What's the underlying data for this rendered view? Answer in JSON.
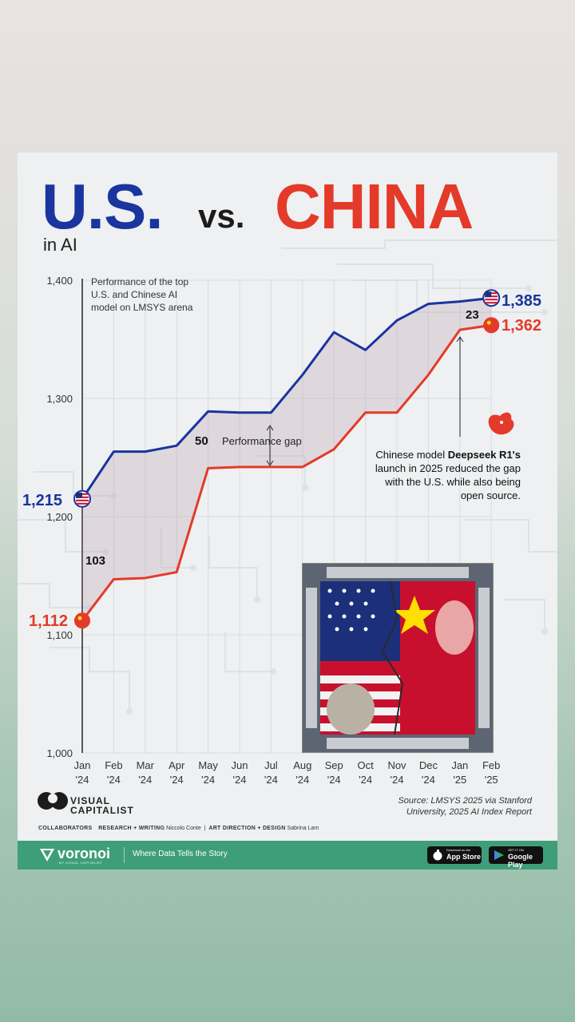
{
  "title": {
    "us": "U.S.",
    "vs": "vs.",
    "china": "CHINA",
    "subtitle": "in AI"
  },
  "chart_data": {
    "type": "line",
    "categories": [
      [
        "Jan",
        "'24"
      ],
      [
        "Feb",
        "'24"
      ],
      [
        "Mar",
        "'24"
      ],
      [
        "Apr",
        "'24"
      ],
      [
        "May",
        "'24"
      ],
      [
        "Jun",
        "'24"
      ],
      [
        "Jul",
        "'24"
      ],
      [
        "Aug",
        "'24"
      ],
      [
        "Sep",
        "'24"
      ],
      [
        "Oct",
        "'24"
      ],
      [
        "Nov",
        "'24"
      ],
      [
        "Dec",
        "'24"
      ],
      [
        "Jan",
        "'25"
      ],
      [
        "Feb",
        "'25"
      ]
    ],
    "series": [
      {
        "country": "us",
        "color": "#1a34a0",
        "values": [
          1215,
          1255,
          1255,
          1260,
          1289,
          1288,
          1288,
          1320,
          1356,
          1341,
          1366,
          1380,
          1382,
          1385
        ]
      },
      {
        "country": "china",
        "color": "#e43a2a",
        "values": [
          1112,
          1147,
          1148,
          1153,
          1241,
          1242,
          1242,
          1242,
          1257,
          1288,
          1288,
          1320,
          1358,
          1362
        ]
      }
    ],
    "yticks": [
      "1,000",
      "1,100",
      "1,200",
      "1,300",
      "1,400"
    ],
    "ytick_values": [
      1000,
      1100,
      1200,
      1300,
      1400
    ],
    "ylim": [
      1000,
      1400
    ],
    "grid": true,
    "start_labels": {
      "us": "1,215",
      "china": "1,112"
    },
    "end_labels": {
      "us": "1,385",
      "china": "1,362"
    },
    "chart_note": [
      "Performance of the top",
      "U.S. and Chinese AI",
      "model on LMSYS arena"
    ],
    "gap_labels": {
      "start": "103",
      "mid_value": "50",
      "mid_text": "Performance gap",
      "end": "23"
    },
    "deepseek_note": {
      "line1_a": "Chinese model ",
      "line1_b": "Deepseek R1's",
      "line2": "launch in 2025 reduced the gap",
      "line3": "with the U.S. while also being",
      "line4": "open source."
    }
  },
  "brand": {
    "line1": "VISUAL",
    "line2": "CAPITALIST"
  },
  "source": {
    "line1": "Source: LMSYS 2025 via Stanford",
    "line2": "University, 2025 AI Index Report"
  },
  "credits": {
    "label": "COLLABORATORS",
    "role1": "RESEARCH + WRITING",
    "name1": "Niccolo Conte",
    "sep": "|",
    "role2": "ART DIRECTION + DESIGN",
    "name2": "Sabrina Lam"
  },
  "footer": {
    "logo": "voronoi",
    "logo_sub": "BY VISUAL CAPITALIST",
    "tagline": "Where Data Tells the Story",
    "appstore_small": "Download on the",
    "appstore_big": "App Store",
    "googleplay_small": "GET IT ON",
    "googleplay_big": "Google Play"
  },
  "colors": {
    "us": "#1a34a0",
    "china": "#e43a2a",
    "footer": "#3f9e7a",
    "card": "#eef0f1"
  }
}
